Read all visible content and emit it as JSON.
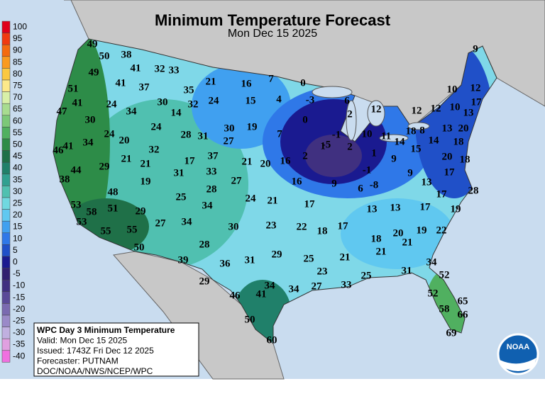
{
  "header": {
    "title": "Minimum Temperature Forecast",
    "subtitle": "Mon Dec 15 2025"
  },
  "legend": {
    "labels": [
      100,
      95,
      90,
      85,
      80,
      75,
      70,
      65,
      60,
      55,
      50,
      45,
      40,
      35,
      30,
      25,
      20,
      15,
      10,
      5,
      0,
      -5,
      -10,
      -15,
      -20,
      -25,
      -30,
      -35,
      -40
    ],
    "colors": [
      "#e0001a",
      "#f03a10",
      "#f46a10",
      "#f99a20",
      "#fbc840",
      "#fce98a",
      "#d8f0a8",
      "#a8dc90",
      "#7cc878",
      "#50b060",
      "#2d8c48",
      "#1f7048",
      "#20806a",
      "#30a090",
      "#50c0b0",
      "#70d8e0",
      "#60c8f0",
      "#40a0f0",
      "#2f78e8",
      "#2050c8",
      "#1a1a90",
      "#302070",
      "#403080",
      "#5a4a98",
      "#7a6ab0",
      "#9a8ac8",
      "#c0b0e0",
      "#e0a0e0",
      "#f070e0"
    ]
  },
  "info_box": {
    "lines": [
      "WPC Day 3 Minimum Temperature",
      "Valid: Mon Dec 15 2025",
      "Issued: 1743Z Fri Dec 12 2025",
      "Forecaster: PUTNAM",
      "DOC/NOAA/NWS/NCEP/WPC"
    ]
  },
  "map": {
    "labels": [
      49,
      50,
      38,
      49,
      41,
      32,
      33,
      41,
      37,
      21,
      16,
      7,
      0,
      9,
      51,
      35,
      10,
      12,
      41,
      24,
      34,
      30,
      32,
      24,
      15,
      4,
      -3,
      6,
      12,
      12,
      12,
      10,
      17,
      13,
      47,
      30,
      14,
      0,
      2,
      19,
      30,
      28,
      31,
      24,
      7,
      -1,
      10,
      11,
      18,
      8,
      13,
      20,
      24,
      20,
      34,
      27,
      14,
      15,
      14,
      18,
      41,
      46,
      32,
      1,
      -5,
      2,
      1,
      9,
      2,
      16,
      21,
      20,
      37,
      17,
      21,
      21,
      20,
      18,
      29,
      44,
      33,
      31,
      -1,
      9,
      17,
      38,
      19,
      27,
      16,
      9,
      6,
      -8,
      13,
      28,
      28,
      48,
      25,
      24,
      21,
      17,
      17,
      53,
      58,
      51,
      29,
      34,
      13,
      13,
      17,
      19,
      53,
      34,
      30,
      23,
      22,
      18,
      17,
      27,
      22,
      19,
      20,
      55,
      55,
      18,
      21,
      50,
      28,
      21,
      39,
      36,
      31,
      29,
      25,
      21,
      34,
      23,
      25,
      31,
      52,
      29,
      33,
      27,
      34,
      41,
      34,
      46,
      52,
      65,
      58,
      66,
      50,
      69,
      60
    ]
  },
  "logo": {
    "text": "NOAA"
  }
}
